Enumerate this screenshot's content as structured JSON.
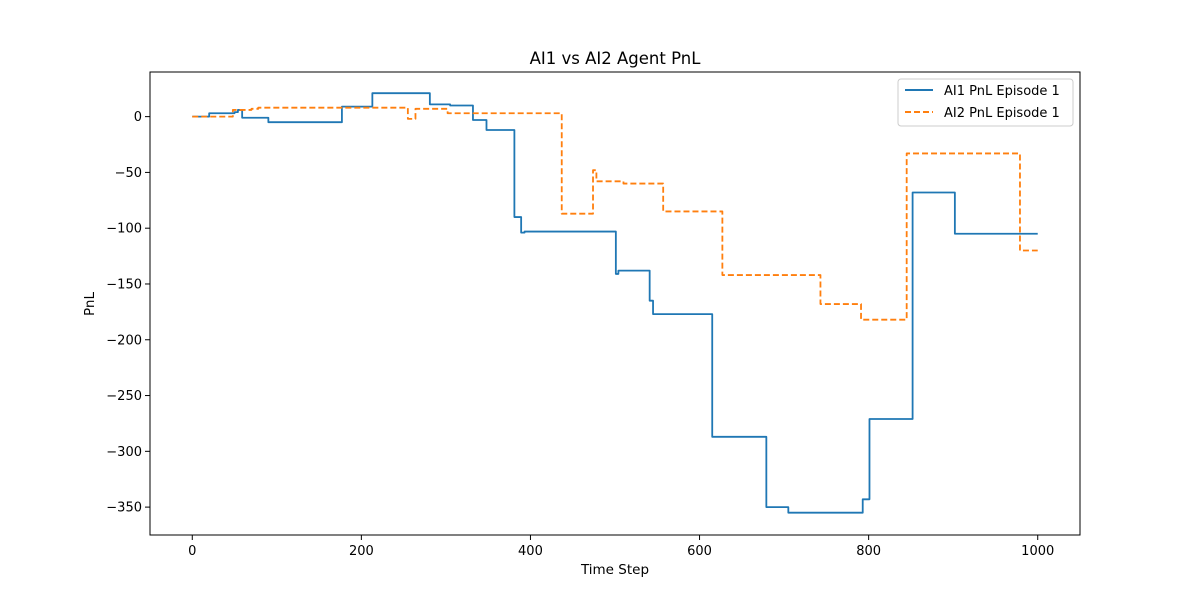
{
  "chart_data": {
    "type": "line",
    "title": "AI1 vs AI2 Agent PnL",
    "xlabel": "Time Step",
    "ylabel": "PnL",
    "xlim": [
      -50,
      1050
    ],
    "ylim": [
      -375,
      40
    ],
    "xticks": [
      0,
      200,
      400,
      600,
      800,
      1000
    ],
    "yticks": [
      0,
      -50,
      -100,
      -150,
      -200,
      -250,
      -300,
      -350
    ],
    "xtick_labels": [
      "0",
      "200",
      "400",
      "600",
      "800",
      "1000"
    ],
    "ytick_labels": [
      "0",
      "−50",
      "−100",
      "−150",
      "−200",
      "−250",
      "−300",
      "−350"
    ],
    "grid": false,
    "legend_position": "top-right",
    "series": [
      {
        "name": "AI1 PnL Episode 1",
        "color": "#1f77b4",
        "style": "solid",
        "points": [
          [
            0,
            0
          ],
          [
            20,
            0
          ],
          [
            20,
            3
          ],
          [
            50,
            3
          ],
          [
            50,
            4
          ],
          [
            54,
            4
          ],
          [
            54,
            6
          ],
          [
            59,
            6
          ],
          [
            59,
            -1
          ],
          [
            90,
            -1
          ],
          [
            90,
            -5
          ],
          [
            177,
            -5
          ],
          [
            177,
            9
          ],
          [
            213,
            9
          ],
          [
            213,
            21
          ],
          [
            281,
            21
          ],
          [
            281,
            11
          ],
          [
            305,
            11
          ],
          [
            305,
            10
          ],
          [
            332,
            10
          ],
          [
            332,
            -3
          ],
          [
            348,
            -3
          ],
          [
            348,
            -12
          ],
          [
            381,
            -12
          ],
          [
            381,
            -90
          ],
          [
            389,
            -90
          ],
          [
            389,
            -104
          ],
          [
            393,
            -104
          ],
          [
            393,
            -103
          ],
          [
            501,
            -103
          ],
          [
            501,
            -141
          ],
          [
            504,
            -141
          ],
          [
            504,
            -138
          ],
          [
            541,
            -138
          ],
          [
            541,
            -165
          ],
          [
            545,
            -165
          ],
          [
            545,
            -177
          ],
          [
            615,
            -177
          ],
          [
            615,
            -287
          ],
          [
            679,
            -287
          ],
          [
            679,
            -350
          ],
          [
            705,
            -350
          ],
          [
            705,
            -355
          ],
          [
            793,
            -355
          ],
          [
            793,
            -343
          ],
          [
            801,
            -343
          ],
          [
            801,
            -271
          ],
          [
            852,
            -271
          ],
          [
            852,
            -68
          ],
          [
            902,
            -68
          ],
          [
            902,
            -105
          ],
          [
            1000,
            -105
          ]
        ]
      },
      {
        "name": "AI2 PnL Episode 1",
        "color": "#ff7f0e",
        "style": "dashed",
        "points": [
          [
            0,
            0
          ],
          [
            48,
            0
          ],
          [
            48,
            6
          ],
          [
            70,
            6
          ],
          [
            70,
            7
          ],
          [
            78,
            7
          ],
          [
            78,
            8
          ],
          [
            255,
            8
          ],
          [
            255,
            -2
          ],
          [
            264,
            -2
          ],
          [
            264,
            7
          ],
          [
            302,
            7
          ],
          [
            302,
            3
          ],
          [
            437,
            3
          ],
          [
            437,
            -87
          ],
          [
            474,
            -87
          ],
          [
            474,
            -48
          ],
          [
            478,
            -48
          ],
          [
            478,
            -58
          ],
          [
            510,
            -58
          ],
          [
            510,
            -60
          ],
          [
            557,
            -60
          ],
          [
            557,
            -85
          ],
          [
            627,
            -85
          ],
          [
            627,
            -142
          ],
          [
            743,
            -142
          ],
          [
            743,
            -168
          ],
          [
            791,
            -168
          ],
          [
            791,
            -182
          ],
          [
            845,
            -182
          ],
          [
            845,
            -33
          ],
          [
            979,
            -33
          ],
          [
            979,
            -120
          ],
          [
            1000,
            -120
          ]
        ]
      }
    ]
  }
}
